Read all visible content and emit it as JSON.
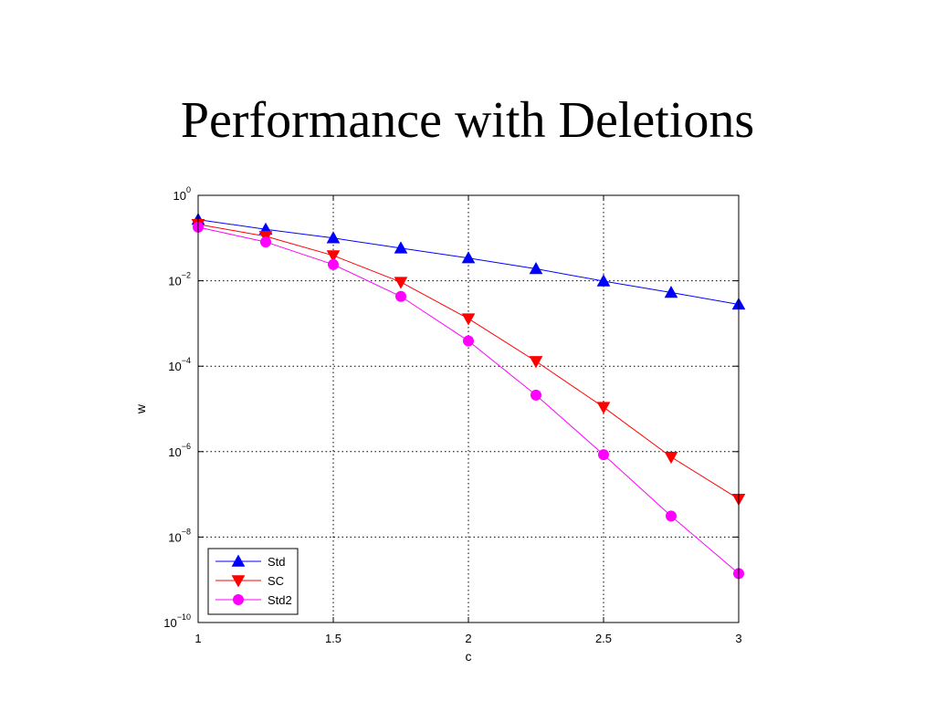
{
  "slide": {
    "title": "Performance with Deletions"
  },
  "chart_data": {
    "type": "line",
    "title": "",
    "xlabel": "c",
    "ylabel": "w",
    "xlim": [
      1,
      3
    ],
    "xticks": [
      1,
      1.5,
      2,
      2.5,
      3
    ],
    "xtick_labels": [
      "1",
      "1.5",
      "2",
      "2.5",
      "3"
    ],
    "ylim": [
      1e-10,
      1
    ],
    "yscale": "log",
    "yticks": [
      {
        "value": 1,
        "base": "10",
        "exp": "0"
      },
      {
        "value": 0.01,
        "base": "10",
        "exp": "−2"
      },
      {
        "value": 0.0001,
        "base": "10",
        "exp": "−4"
      },
      {
        "value": 1e-06,
        "base": "10",
        "exp": "−6"
      },
      {
        "value": 1e-08,
        "base": "10",
        "exp": "−8"
      },
      {
        "value": 1e-10,
        "base": "10",
        "exp": "−10"
      }
    ],
    "grid": true,
    "legend_position": "bottom-left",
    "x": [
      1,
      1.25,
      1.5,
      1.75,
      2,
      2.25,
      2.5,
      2.75,
      3
    ],
    "series": [
      {
        "name": "Std",
        "color": "#0000ff",
        "marker": "triangle-up",
        "values": [
          0.27,
          0.16,
          0.1,
          0.058,
          0.034,
          0.019,
          0.0098,
          0.0053,
          0.0028
        ]
      },
      {
        "name": "SC",
        "color": "#ff0000",
        "marker": "triangle-down",
        "values": [
          0.21,
          0.11,
          0.039,
          0.0093,
          0.0013,
          0.00013,
          1.1e-05,
          7.5e-07,
          7.8e-08
        ]
      },
      {
        "name": "Std2",
        "color": "#ff00ff",
        "marker": "circle",
        "values": [
          0.18,
          0.081,
          0.024,
          0.0043,
          0.00039,
          2.1e-05,
          8.5e-07,
          3.1e-08,
          1.4e-09
        ]
      }
    ]
  }
}
